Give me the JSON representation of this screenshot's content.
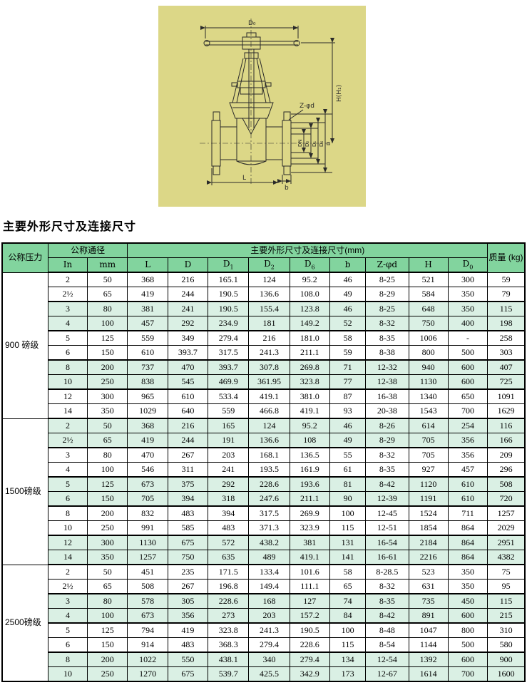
{
  "page": {
    "heading": "主要外形尺寸及连接尺寸"
  },
  "colors": {
    "drawing_background": "#dcd787",
    "table_header_green": "#82d49e",
    "table_row_tint_green": "#daf0e4",
    "line_color": "#2a2a2a"
  },
  "diagram": {
    "labels": {
      "d0": "D₀",
      "h": "H(H₁)",
      "z_phid": "Z-φd",
      "dn": "DN",
      "d2": "D₂",
      "d6": "D₆",
      "d1": "D₁",
      "d": "D",
      "b": "b",
      "l": "L"
    }
  },
  "table": {
    "header": {
      "pressure": "公称压力",
      "diameter_group": "公称通径",
      "dims_group": "主要外形尺寸及连接尺寸(mm)",
      "weight": "质量\n(kg)",
      "sub_columns": [
        {
          "text": "In"
        },
        {
          "text": "mm"
        },
        {
          "text": "L"
        },
        {
          "text": "D"
        },
        {
          "text": "D",
          "sub": "1"
        },
        {
          "text": "D",
          "sub": "2"
        },
        {
          "text": "D",
          "sub": "6"
        },
        {
          "text": "b"
        },
        {
          "text": "Z-φd"
        },
        {
          "text": "H"
        },
        {
          "text": "D",
          "sub": "0"
        }
      ]
    },
    "sections": [
      {
        "label": "900 磅级",
        "rows": [
          [
            "2",
            "50",
            "368",
            "216",
            "165.1",
            "124",
            "95.2",
            "46",
            "8-25",
            "521",
            "300",
            "59"
          ],
          [
            "2½",
            "65",
            "419",
            "244",
            "190.5",
            "136.6",
            "108.0",
            "49",
            "8-29",
            "584",
            "350",
            "79"
          ],
          [
            "3",
            "80",
            "381",
            "241",
            "190.5",
            "155.4",
            "123.8",
            "46",
            "8-25",
            "648",
            "350",
            "115"
          ],
          [
            "4",
            "100",
            "457",
            "292",
            "234.9",
            "181",
            "149.2",
            "52",
            "8-32",
            "750",
            "400",
            "198"
          ],
          [
            "5",
            "125",
            "559",
            "349",
            "279.4",
            "216",
            "181.0",
            "58",
            "8-35",
            "1006",
            "-",
            "258"
          ],
          [
            "6",
            "150",
            "610",
            "393.7",
            "317.5",
            "241.3",
            "211.1",
            "59",
            "8-38",
            "800",
            "500",
            "303"
          ],
          [
            "8",
            "200",
            "737",
            "470",
            "393.7",
            "307.8",
            "269.8",
            "71",
            "12-32",
            "940",
            "600",
            "407"
          ],
          [
            "10",
            "250",
            "838",
            "545",
            "469.9",
            "361.95",
            "323.8",
            "77",
            "12-38",
            "1130",
            "600",
            "725"
          ],
          [
            "12",
            "300",
            "965",
            "610",
            "533.4",
            "419.1",
            "381.0",
            "87",
            "16-38",
            "1340",
            "650",
            "1091"
          ],
          [
            "14",
            "350",
            "1029",
            "640",
            "559",
            "466.8",
            "419.1",
            "93",
            "20-38",
            "1543",
            "700",
            "1629"
          ]
        ]
      },
      {
        "label": "1500磅级",
        "rows": [
          [
            "2",
            "50",
            "368",
            "216",
            "165",
            "124",
            "95.2",
            "46",
            "8-26",
            "614",
            "254",
            "116"
          ],
          [
            "2½",
            "65",
            "419",
            "244",
            "191",
            "136.6",
            "108",
            "49",
            "8-29",
            "705",
            "356",
            "166"
          ],
          [
            "3",
            "80",
            "470",
            "267",
            "203",
            "168.1",
            "136.5",
            "55",
            "8-32",
            "705",
            "356",
            "209"
          ],
          [
            "4",
            "100",
            "546",
            "311",
            "241",
            "193.5",
            "161.9",
            "61",
            "8-35",
            "927",
            "457",
            "296"
          ],
          [
            "5",
            "125",
            "673",
            "375",
            "292",
            "228.6",
            "193.6",
            "81",
            "8-42",
            "1120",
            "610",
            "508"
          ],
          [
            "6",
            "150",
            "705",
            "394",
            "318",
            "247.6",
            "211.1",
            "90",
            "12-39",
            "1191",
            "610",
            "720"
          ],
          [
            "8",
            "200",
            "832",
            "483",
            "394",
            "317.5",
            "269.9",
            "100",
            "12-45",
            "1524",
            "711",
            "1257"
          ],
          [
            "10",
            "250",
            "991",
            "585",
            "483",
            "371.3",
            "323.9",
            "115",
            "12-51",
            "1854",
            "864",
            "2029"
          ],
          [
            "12",
            "300",
            "1130",
            "675",
            "572",
            "438.2",
            "381",
            "131",
            "16-54",
            "2184",
            "864",
            "2951"
          ],
          [
            "14",
            "350",
            "1257",
            "750",
            "635",
            "489",
            "419.1",
            "141",
            "16-61",
            "2216",
            "864",
            "4382"
          ]
        ]
      },
      {
        "label": "2500磅级",
        "rows": [
          [
            "2",
            "50",
            "451",
            "235",
            "171.5",
            "133.4",
            "101.6",
            "58",
            "8-28.5",
            "523",
            "350",
            "75"
          ],
          [
            "2½",
            "65",
            "508",
            "267",
            "196.8",
            "149.4",
            "111.1",
            "65",
            "8-32",
            "631",
            "350",
            "95"
          ],
          [
            "3",
            "80",
            "578",
            "305",
            "228.6",
            "168",
            "127",
            "74",
            "8-35",
            "735",
            "450",
            "115"
          ],
          [
            "4",
            "100",
            "673",
            "356",
            "273",
            "203",
            "157.2",
            "84",
            "8-42",
            "891",
            "600",
            "215"
          ],
          [
            "5",
            "125",
            "794",
            "419",
            "323.8",
            "241.3",
            "190.5",
            "100",
            "8-48",
            "1047",
            "800",
            "310"
          ],
          [
            "6",
            "150",
            "914",
            "483",
            "368.3",
            "279.4",
            "228.6",
            "115",
            "8-54",
            "1144",
            "500",
            "580"
          ],
          [
            "8",
            "200",
            "1022",
            "550",
            "438.1",
            "340",
            "279.4",
            "134",
            "12-54",
            "1392",
            "600",
            "900"
          ],
          [
            "10",
            "250",
            "1270",
            "675",
            "539.7",
            "425.5",
            "342.9",
            "173",
            "12-67",
            "1614",
            "700",
            "1600"
          ]
        ]
      }
    ]
  }
}
